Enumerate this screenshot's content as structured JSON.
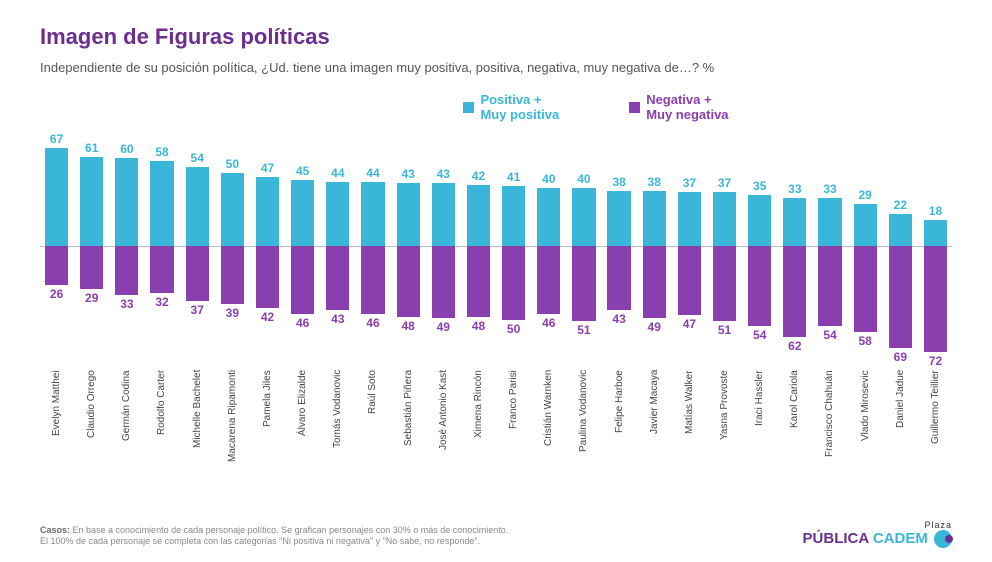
{
  "header": {
    "title": "Imagen de Figuras políticas",
    "subtitle": "Independiente de su posición política, ¿Ud. tiene una imagen muy positiva, positiva, negativa, muy negativa de…? %"
  },
  "legend": {
    "positive": "Positiva +\nMuy positiva",
    "negative": "Negativa +\nMuy negativa"
  },
  "chart": {
    "type": "diverging-bar",
    "positive_color": "#3ab7d8",
    "negative_color": "#8a3fae",
    "positive_text_color": "#3ab7d8",
    "negative_text_color": "#8a3fae",
    "axis_color": "#bbbbbb",
    "background_color": "#ffffff",
    "max_value": 80,
    "bar_width_ratio": 0.7,
    "value_fontsize": 12,
    "category_fontsize": 10,
    "categories": [
      "Evelyn Matthei",
      "Claudio Orrego",
      "Germán Codina",
      "Rodolfo Carter",
      "Michelle Bachelet",
      "Macarena Ripamonti",
      "Pamela Jiles",
      "Álvaro Elizalde",
      "Tomás Vodanovic",
      "Raúl Soto",
      "Sebastián Piñera",
      "José Antonio Kast",
      "Ximena Rincón",
      "Franco Parisi",
      "Cristián Warnken",
      "Paulina Vodanovic",
      "Felipe Harboe",
      "Javier Macaya",
      "Matías Walker",
      "Yasna Provoste",
      "Iraci Hassler",
      "Karol Cariola",
      "Francisco Chahuán",
      "Vlado Mirosevic",
      "Daniel Jadue",
      "Guillermo Teillier"
    ],
    "positive_values": [
      67,
      61,
      60,
      58,
      54,
      50,
      47,
      45,
      44,
      44,
      43,
      43,
      42,
      41,
      40,
      40,
      38,
      38,
      37,
      37,
      35,
      33,
      33,
      29,
      22,
      18
    ],
    "negative_values": [
      26,
      29,
      33,
      32,
      37,
      39,
      42,
      46,
      43,
      46,
      48,
      49,
      48,
      50,
      46,
      51,
      43,
      49,
      47,
      51,
      54,
      62,
      54,
      58,
      69,
      72
    ]
  },
  "footer": {
    "note_label": "Casos:",
    "note_line1": " En base a conocimiento de cada personaje político. Se grafican personajes con 30% o más de conocimiento.",
    "note_line2": "El 100% de cada personaje se completa con las categorías \"Ni positiva ni negativa\" y \"No sabe, no responde\".",
    "logo_top": "Plaza",
    "logo_left": "PÚBLICA",
    "logo_right": " CADEM"
  }
}
